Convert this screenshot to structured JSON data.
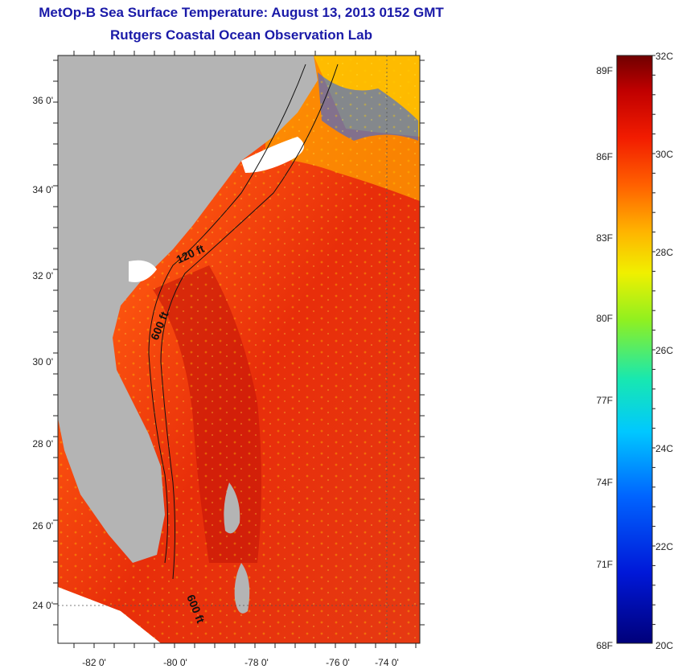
{
  "header": {
    "title": "MetOp-B Sea Surface Temperature:  August 13, 2013 0152 GMT",
    "subtitle": "Rutgers Coastal Ocean Observation Lab"
  },
  "map": {
    "lat_labels": [
      "36 0'",
      "34 0'",
      "32 0'",
      "30 0'",
      "28 0'",
      "26 0'",
      "24 0'"
    ],
    "lon_labels": [
      "-82 0'",
      "-80 0'",
      "-78 0'",
      "-76 0'",
      "-74 0'"
    ],
    "depth_labels": [
      "120 ft",
      "600 ft",
      "600 ft"
    ],
    "colors": {
      "land": "#b4b4b4",
      "warm": "#e83a12",
      "hot": "#c41608",
      "cool": "#ffb000"
    }
  },
  "colorbar": {
    "celsius_labels": [
      "32C",
      "30C",
      "28C",
      "26C",
      "24C",
      "22C",
      "20C"
    ],
    "fahrenheit_labels": [
      "89F",
      "86F",
      "83F",
      "80F",
      "77F",
      "74F",
      "71F",
      "68F"
    ],
    "range_c": [
      20,
      32
    ]
  }
}
